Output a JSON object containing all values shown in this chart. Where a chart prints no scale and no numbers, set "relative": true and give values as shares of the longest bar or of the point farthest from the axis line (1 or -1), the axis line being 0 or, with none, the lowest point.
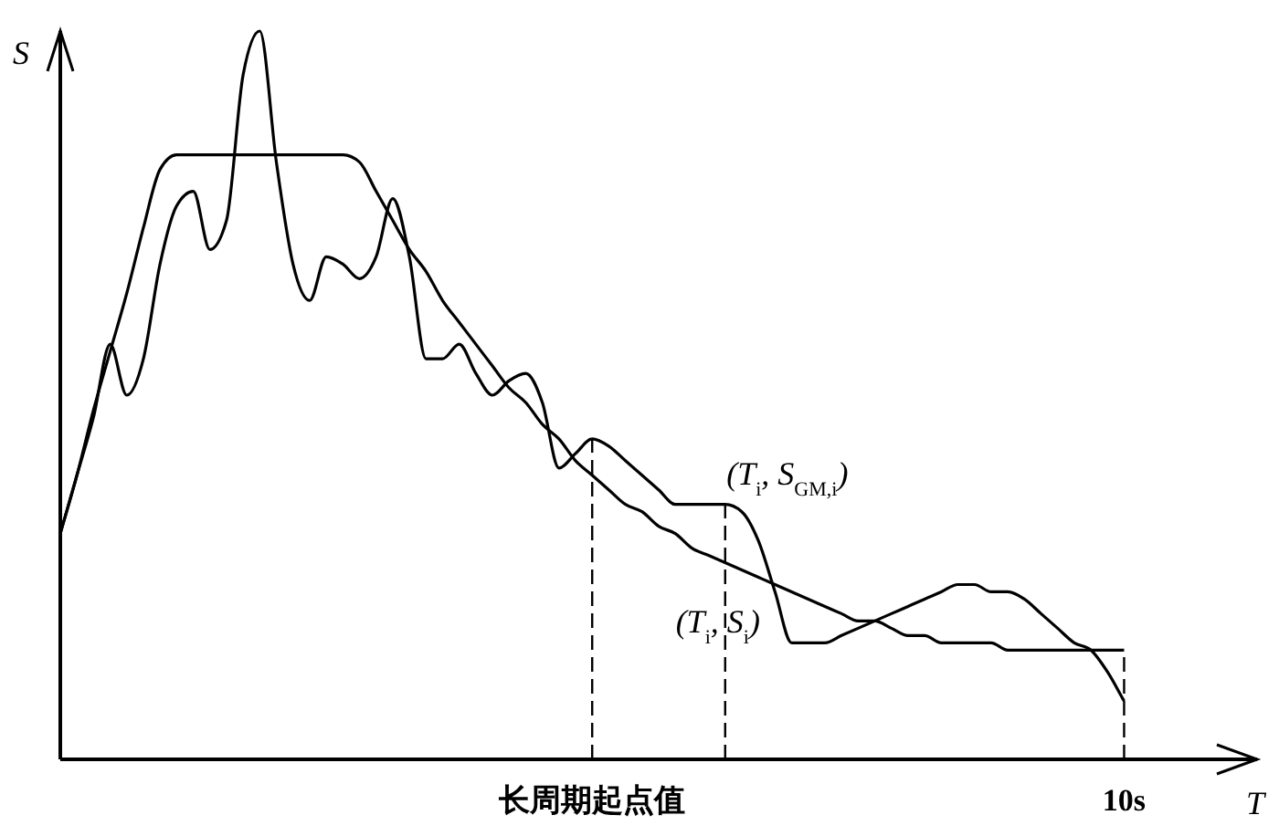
{
  "chart_data": {
    "type": "line",
    "relative": true,
    "xlabel": "T",
    "ylabel": "S",
    "categories": [
      null,
      null,
      null,
      null,
      null,
      null,
      null,
      null,
      null,
      null,
      null,
      null,
      null,
      null,
      null,
      null,
      null,
      null,
      null,
      null,
      null,
      null,
      null,
      null,
      null,
      null,
      null,
      null,
      null,
      null,
      null,
      null,
      "长周期起点值",
      null,
      null,
      null,
      null,
      null,
      null,
      null,
      null,
      null,
      null,
      null,
      null,
      null,
      null,
      null,
      null,
      null,
      null,
      null,
      null,
      null,
      null,
      null,
      null,
      null,
      null,
      null,
      null,
      null,
      null,
      null,
      "10s",
      null,
      null,
      null,
      null,
      null,
      null,
      null,
      null
    ],
    "tick_labels": "x",
    "grid": false,
    "series": [
      {
        "color": "#000000",
        "values": [
          0.31,
          0.39,
          0.48,
          0.56,
          0.64,
          0.73,
          0.81,
          0.83,
          0.83,
          0.83,
          0.83,
          0.83,
          0.83,
          0.83,
          0.83,
          0.83,
          0.83,
          0.83,
          0.82,
          0.78,
          0.74,
          0.7,
          0.67,
          0.63,
          0.6,
          0.57,
          0.54,
          0.51,
          0.49,
          0.46,
          0.44,
          0.41,
          0.39,
          0.37,
          0.35,
          0.34,
          0.32,
          0.31,
          0.29,
          0.28,
          0.27,
          0.26,
          0.25,
          0.24,
          0.23,
          0.22,
          0.21,
          0.2,
          0.19,
          0.19,
          0.18,
          0.17,
          0.17,
          0.16,
          0.16,
          0.16,
          0.16,
          0.15,
          0.15,
          0.15,
          0.15,
          0.15,
          0.15,
          0.15,
          0.15,
          null,
          null,
          null,
          null,
          null,
          null,
          null,
          null
        ]
      },
      {
        "color": "#000000",
        "values": [
          0.31,
          0.39,
          0.47,
          0.57,
          0.5,
          0.55,
          0.68,
          0.76,
          0.78,
          0.7,
          0.74,
          0.94,
          1.0,
          0.82,
          0.68,
          0.63,
          0.69,
          0.68,
          0.66,
          0.69,
          0.77,
          0.69,
          0.55,
          0.55,
          0.57,
          0.53,
          0.5,
          0.52,
          0.53,
          0.49,
          0.4,
          0.42,
          0.44,
          0.43,
          0.41,
          0.39,
          0.37,
          0.35,
          0.35,
          0.35,
          0.35,
          0.34,
          0.3,
          0.23,
          0.16,
          0.16,
          0.16,
          0.17,
          0.18,
          0.19,
          0.2,
          0.21,
          0.22,
          0.23,
          0.24,
          0.24,
          0.23,
          0.23,
          0.22,
          0.2,
          0.18,
          0.16,
          0.15,
          0.12,
          0.08,
          null,
          null,
          null,
          null,
          null,
          null,
          null,
          null
        ]
      }
    ],
    "ref_lines": [
      {
        "axis": "x",
        "value": "长周期起点值",
        "line_style": "dashed"
      },
      {
        "axis": "x",
        "value": "10s",
        "line_style": "dashed"
      }
    ],
    "annotations": [
      "(T$_{i}$, S$_{GM,i}$)",
      "(T$_{i}$, S$_{i}$)"
    ]
  }
}
